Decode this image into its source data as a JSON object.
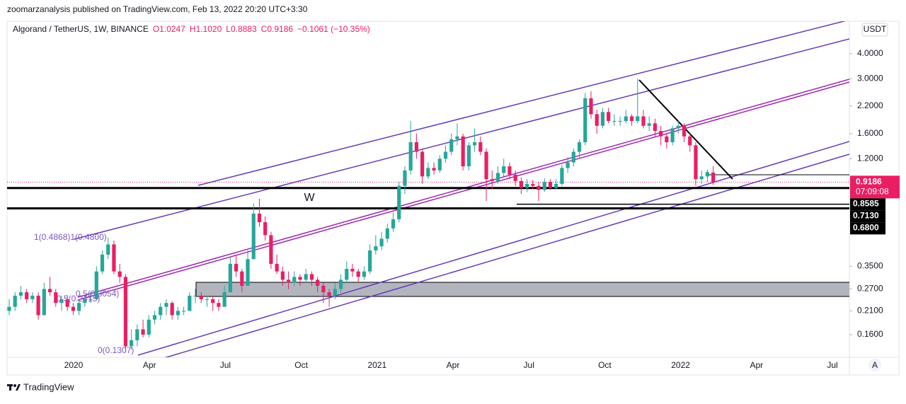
{
  "header": {
    "publisher": "zoomarzanalysis published on TradingView.com, Feb 13, 2022 20:20 UTC+3:30"
  },
  "chart_data": {
    "type": "candlestick",
    "title": "Algorand / TetherUS, 1W, BINANCE",
    "legend_items": [
      "O1.0247",
      "H1.1020",
      "L0.8883",
      "C0.9186",
      "−0.1061 (−10.35%)"
    ],
    "up_color": "#26a69a",
    "down_color": "#e91e63",
    "log": true,
    "grid": false,
    "ylim": [
      0.1234,
      5.8
    ],
    "yticks": [
      {
        "value": 4,
        "label": "4.0000"
      },
      {
        "value": 3,
        "label": "3.0000"
      },
      {
        "value": 2.2,
        "label": "2.2000"
      },
      {
        "value": 1.6,
        "label": "1.6000"
      },
      {
        "value": 1.2,
        "label": "1.2000"
      },
      {
        "value": 0.35,
        "label": "0.3500"
      },
      {
        "value": 0.27,
        "label": "0.2700"
      },
      {
        "value": 0.21,
        "label": "0.2100"
      },
      {
        "value": 0.16,
        "label": "0.1600"
      }
    ],
    "x_labels": [
      "2020",
      "Apr",
      "Jul",
      "Oct",
      "2021",
      "Apr",
      "Jul",
      "Oct",
      "2022",
      "Apr",
      "Jul"
    ],
    "currency": "USDT",
    "scale_button": "A",
    "countdown": "07:09:08",
    "last_price": {
      "value": 0.9186,
      "label": "0.9186"
    },
    "price_lines": [
      {
        "value": 0.8585,
        "label": "0.8585"
      },
      {
        "value": 0.713,
        "label": "0.7130"
      },
      {
        "value": 0.68,
        "label": "0.6800"
      }
    ],
    "annotations": [
      "W",
      "1(0.4868)1(0.4800)",
      "0.5(0.3054)",
      "0.5(0.2415)",
      "0(0.1307)"
    ],
    "candles": [
      [
        0.21,
        0.24,
        0.2,
        0.22
      ],
      [
        0.22,
        0.26,
        0.21,
        0.25
      ],
      [
        0.25,
        0.28,
        0.24,
        0.26
      ],
      [
        0.26,
        0.27,
        0.23,
        0.24
      ],
      [
        0.24,
        0.26,
        0.23,
        0.25
      ],
      [
        0.25,
        0.26,
        0.19,
        0.2
      ],
      [
        0.2,
        0.29,
        0.2,
        0.27
      ],
      [
        0.27,
        0.31,
        0.25,
        0.26
      ],
      [
        0.26,
        0.27,
        0.22,
        0.23
      ],
      [
        0.23,
        0.25,
        0.21,
        0.24
      ],
      [
        0.24,
        0.25,
        0.21,
        0.22
      ],
      [
        0.22,
        0.23,
        0.2,
        0.21
      ],
      [
        0.21,
        0.24,
        0.2,
        0.23
      ],
      [
        0.23,
        0.25,
        0.22,
        0.24
      ],
      [
        0.24,
        0.26,
        0.23,
        0.24
      ],
      [
        0.24,
        0.35,
        0.24,
        0.33
      ],
      [
        0.33,
        0.42,
        0.32,
        0.4
      ],
      [
        0.4,
        0.4868,
        0.38,
        0.45
      ],
      [
        0.45,
        0.47,
        0.32,
        0.33
      ],
      [
        0.33,
        0.36,
        0.29,
        0.31
      ],
      [
        0.31,
        0.32,
        0.1307,
        0.14
      ],
      [
        0.14,
        0.17,
        0.135,
        0.15
      ],
      [
        0.15,
        0.18,
        0.14,
        0.17
      ],
      [
        0.17,
        0.19,
        0.155,
        0.16
      ],
      [
        0.16,
        0.2,
        0.155,
        0.19
      ],
      [
        0.19,
        0.21,
        0.18,
        0.2
      ],
      [
        0.2,
        0.23,
        0.19,
        0.22
      ],
      [
        0.22,
        0.24,
        0.2,
        0.23
      ],
      [
        0.23,
        0.235,
        0.19,
        0.2
      ],
      [
        0.2,
        0.22,
        0.19,
        0.21
      ],
      [
        0.21,
        0.22,
        0.2,
        0.21
      ],
      [
        0.21,
        0.26,
        0.21,
        0.25
      ],
      [
        0.25,
        0.27,
        0.23,
        0.25
      ],
      [
        0.25,
        0.26,
        0.23,
        0.24
      ],
      [
        0.24,
        0.25,
        0.22,
        0.24
      ],
      [
        0.24,
        0.25,
        0.21,
        0.23
      ],
      [
        0.23,
        0.24,
        0.21,
        0.22
      ],
      [
        0.22,
        0.28,
        0.22,
        0.26
      ],
      [
        0.26,
        0.39,
        0.26,
        0.36
      ],
      [
        0.36,
        0.4,
        0.31,
        0.33
      ],
      [
        0.33,
        0.34,
        0.26,
        0.28
      ],
      [
        0.28,
        0.42,
        0.28,
        0.38
      ],
      [
        0.38,
        0.72,
        0.38,
        0.64
      ],
      [
        0.64,
        0.76,
        0.55,
        0.58
      ],
      [
        0.58,
        0.62,
        0.47,
        0.5
      ],
      [
        0.5,
        0.52,
        0.34,
        0.36
      ],
      [
        0.36,
        0.4,
        0.32,
        0.33
      ],
      [
        0.33,
        0.35,
        0.28,
        0.3
      ],
      [
        0.3,
        0.33,
        0.27,
        0.29
      ],
      [
        0.29,
        0.33,
        0.28,
        0.31
      ],
      [
        0.31,
        0.32,
        0.28,
        0.3
      ],
      [
        0.3,
        0.34,
        0.29,
        0.32
      ],
      [
        0.32,
        0.33,
        0.28,
        0.3
      ],
      [
        0.3,
        0.31,
        0.26,
        0.28
      ],
      [
        0.28,
        0.29,
        0.23,
        0.26
      ],
      [
        0.26,
        0.27,
        0.22,
        0.25
      ],
      [
        0.25,
        0.29,
        0.24,
        0.27
      ],
      [
        0.27,
        0.32,
        0.26,
        0.3
      ],
      [
        0.3,
        0.37,
        0.29,
        0.34
      ],
      [
        0.34,
        0.36,
        0.31,
        0.33
      ],
      [
        0.33,
        0.34,
        0.29,
        0.31
      ],
      [
        0.31,
        0.35,
        0.3,
        0.33
      ],
      [
        0.33,
        0.45,
        0.32,
        0.42
      ],
      [
        0.42,
        0.5,
        0.4,
        0.44
      ],
      [
        0.44,
        0.52,
        0.42,
        0.48
      ],
      [
        0.48,
        0.57,
        0.46,
        0.54
      ],
      [
        0.54,
        0.65,
        0.52,
        0.6
      ],
      [
        0.6,
        0.92,
        0.58,
        0.88
      ],
      [
        0.88,
        1.1,
        0.8,
        1.05
      ],
      [
        1.05,
        1.85,
        1.0,
        1.45
      ],
      [
        1.45,
        1.6,
        1.2,
        1.3
      ],
      [
        1.3,
        1.35,
        0.9,
        0.98
      ],
      [
        0.98,
        1.15,
        0.95,
        1.08
      ],
      [
        1.08,
        1.15,
        1.0,
        1.05
      ],
      [
        1.05,
        1.25,
        1.02,
        1.2
      ],
      [
        1.2,
        1.4,
        1.15,
        1.3
      ],
      [
        1.3,
        1.6,
        1.25,
        1.5
      ],
      [
        1.5,
        1.8,
        1.4,
        1.55
      ],
      [
        1.55,
        1.6,
        1.05,
        1.1
      ],
      [
        1.1,
        1.45,
        1.05,
        1.4
      ],
      [
        1.4,
        1.7,
        1.3,
        1.45
      ],
      [
        1.45,
        1.55,
        1.25,
        1.3
      ],
      [
        1.3,
        1.35,
        0.74,
        0.95
      ],
      [
        0.95,
        1.05,
        0.85,
        0.93
      ],
      [
        0.93,
        1.1,
        0.9,
        1.02
      ],
      [
        1.02,
        1.2,
        0.98,
        1.1
      ],
      [
        1.1,
        1.15,
        0.95,
        1.0
      ],
      [
        1.0,
        1.05,
        0.88,
        0.93
      ],
      [
        0.93,
        0.97,
        0.8,
        0.86
      ],
      [
        0.86,
        0.95,
        0.82,
        0.9
      ],
      [
        0.9,
        0.94,
        0.85,
        0.88
      ],
      [
        0.88,
        0.92,
        0.74,
        0.84
      ],
      [
        0.84,
        0.96,
        0.82,
        0.92
      ],
      [
        0.92,
        0.95,
        0.84,
        0.86
      ],
      [
        0.86,
        0.95,
        0.85,
        0.9
      ],
      [
        0.9,
        1.12,
        0.88,
        1.08
      ],
      [
        1.08,
        1.22,
        1.02,
        1.15
      ],
      [
        1.15,
        1.35,
        1.1,
        1.3
      ],
      [
        1.3,
        1.5,
        1.2,
        1.45
      ],
      [
        1.45,
        2.55,
        1.4,
        2.4
      ],
      [
        2.4,
        2.6,
        1.9,
        2.0
      ],
      [
        2.0,
        2.1,
        1.6,
        1.75
      ],
      [
        1.75,
        2.15,
        1.7,
        2.05
      ],
      [
        2.05,
        2.15,
        1.8,
        1.85
      ],
      [
        1.85,
        2.0,
        1.75,
        1.85
      ],
      [
        1.85,
        1.95,
        1.75,
        1.85
      ],
      [
        1.85,
        2.1,
        1.8,
        1.95
      ],
      [
        1.95,
        2.0,
        1.75,
        1.85
      ],
      [
        1.85,
        3.0,
        1.8,
        1.95
      ],
      [
        1.95,
        2.1,
        1.7,
        1.75
      ],
      [
        1.75,
        1.95,
        1.65,
        1.8
      ],
      [
        1.8,
        1.9,
        1.55,
        1.65
      ],
      [
        1.65,
        1.75,
        1.4,
        1.55
      ],
      [
        1.55,
        1.6,
        1.35,
        1.45
      ],
      [
        1.45,
        1.75,
        1.4,
        1.7
      ],
      [
        1.7,
        1.85,
        1.6,
        1.75
      ],
      [
        1.75,
        1.8,
        1.45,
        1.55
      ],
      [
        1.55,
        1.62,
        1.3,
        1.4
      ],
      [
        1.4,
        1.45,
        0.88,
        0.95
      ],
      [
        0.95,
        1.05,
        0.9,
        0.98
      ],
      [
        0.98,
        1.06,
        0.92,
        1.03
      ],
      [
        1.0247,
        1.102,
        0.8883,
        0.9186
      ]
    ]
  },
  "footer": {
    "brand": "TradingView"
  }
}
